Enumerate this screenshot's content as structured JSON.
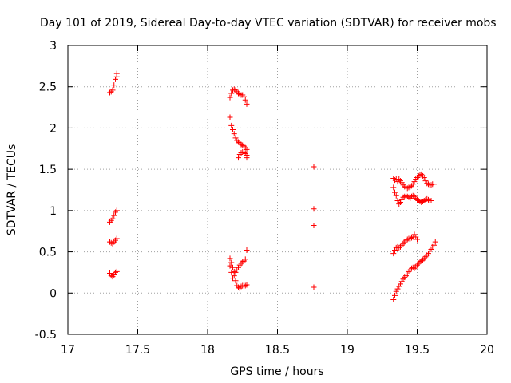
{
  "chart_data": {
    "type": "scatter",
    "title": "Day 101 of 2019, Sidereal Day-to-day VTEC variation (SDTVAR) for receiver mobs",
    "xlabel": "GPS time / hours",
    "ylabel": "SDTVAR / TECUs",
    "xlim": [
      17,
      20
    ],
    "ylim": [
      -0.5,
      3
    ],
    "x_ticks": [
      17,
      17.5,
      18,
      18.5,
      19,
      19.5,
      20
    ],
    "x_tick_labels": [
      "17",
      "17.5",
      "18",
      "18.5",
      "19",
      "19.5",
      "20"
    ],
    "y_ticks": [
      -0.5,
      0,
      0.5,
      1,
      1.5,
      2,
      2.5,
      3
    ],
    "y_tick_labels": [
      "-0.5",
      "0",
      "0.5",
      "1",
      "1.5",
      "2",
      "2.5",
      "3"
    ],
    "grid": true,
    "marker": "+",
    "color": "#ff0000",
    "series": [
      {
        "name": "SDTVAR",
        "points": [
          [
            17.3,
            2.43
          ],
          [
            17.31,
            2.44
          ],
          [
            17.32,
            2.46
          ],
          [
            17.33,
            2.52
          ],
          [
            17.34,
            2.59
          ],
          [
            17.35,
            2.62
          ],
          [
            17.35,
            2.66
          ],
          [
            17.3,
            0.86
          ],
          [
            17.31,
            0.88
          ],
          [
            17.32,
            0.9
          ],
          [
            17.33,
            0.94
          ],
          [
            17.34,
            0.98
          ],
          [
            17.35,
            1.0
          ],
          [
            17.3,
            0.62
          ],
          [
            17.31,
            0.61
          ],
          [
            17.32,
            0.6
          ],
          [
            17.33,
            0.62
          ],
          [
            17.34,
            0.64
          ],
          [
            17.35,
            0.66
          ],
          [
            17.3,
            0.24
          ],
          [
            17.31,
            0.21
          ],
          [
            17.32,
            0.2
          ],
          [
            17.33,
            0.22
          ],
          [
            17.34,
            0.25
          ],
          [
            17.35,
            0.26
          ],
          [
            18.16,
            2.37
          ],
          [
            18.17,
            2.42
          ],
          [
            18.18,
            2.46
          ],
          [
            18.19,
            2.47
          ],
          [
            18.2,
            2.46
          ],
          [
            18.21,
            2.44
          ],
          [
            18.22,
            2.42
          ],
          [
            18.23,
            2.41
          ],
          [
            18.24,
            2.4
          ],
          [
            18.25,
            2.4
          ],
          [
            18.26,
            2.38
          ],
          [
            18.27,
            2.34
          ],
          [
            18.28,
            2.29
          ],
          [
            18.16,
            2.13
          ],
          [
            18.17,
            2.03
          ],
          [
            18.18,
            1.98
          ],
          [
            18.19,
            1.93
          ],
          [
            18.2,
            1.88
          ],
          [
            18.21,
            1.85
          ],
          [
            18.22,
            1.83
          ],
          [
            18.23,
            1.82
          ],
          [
            18.24,
            1.8
          ],
          [
            18.25,
            1.79
          ],
          [
            18.26,
            1.78
          ],
          [
            18.27,
            1.76
          ],
          [
            18.28,
            1.74
          ],
          [
            18.22,
            1.64
          ],
          [
            18.23,
            1.68
          ],
          [
            18.24,
            1.7
          ],
          [
            18.25,
            1.71
          ],
          [
            18.26,
            1.7
          ],
          [
            18.27,
            1.69
          ],
          [
            18.28,
            1.67
          ],
          [
            18.28,
            1.64
          ],
          [
            18.16,
            0.42
          ],
          [
            18.17,
            0.37
          ],
          [
            18.18,
            0.31
          ],
          [
            18.19,
            0.26
          ],
          [
            18.2,
            0.25
          ],
          [
            18.21,
            0.28
          ],
          [
            18.22,
            0.31
          ],
          [
            18.23,
            0.34
          ],
          [
            18.24,
            0.36
          ],
          [
            18.25,
            0.38
          ],
          [
            18.26,
            0.39
          ],
          [
            18.27,
            0.41
          ],
          [
            18.28,
            0.52
          ],
          [
            18.16,
            0.33
          ],
          [
            18.17,
            0.25
          ],
          [
            18.18,
            0.18
          ],
          [
            18.19,
            0.21
          ],
          [
            18.2,
            0.15
          ],
          [
            18.21,
            0.09
          ],
          [
            18.22,
            0.07
          ],
          [
            18.23,
            0.06
          ],
          [
            18.24,
            0.08
          ],
          [
            18.25,
            0.09
          ],
          [
            18.26,
            0.08
          ],
          [
            18.27,
            0.09
          ],
          [
            18.28,
            0.1
          ],
          [
            18.76,
            1.53
          ],
          [
            18.76,
            1.02
          ],
          [
            18.76,
            0.82
          ],
          [
            18.76,
            0.07
          ],
          [
            19.33,
            1.39
          ],
          [
            19.34,
            1.37
          ],
          [
            19.35,
            1.38
          ],
          [
            19.36,
            1.35
          ],
          [
            19.37,
            1.38
          ],
          [
            19.38,
            1.36
          ],
          [
            19.39,
            1.34
          ],
          [
            19.4,
            1.31
          ],
          [
            19.41,
            1.29
          ],
          [
            19.42,
            1.28
          ],
          [
            19.43,
            1.27
          ],
          [
            19.44,
            1.28
          ],
          [
            19.45,
            1.29
          ],
          [
            19.46,
            1.3
          ],
          [
            19.47,
            1.32
          ],
          [
            19.48,
            1.35
          ],
          [
            19.49,
            1.38
          ],
          [
            19.5,
            1.4
          ],
          [
            19.51,
            1.42
          ],
          [
            19.52,
            1.43
          ],
          [
            19.53,
            1.44
          ],
          [
            19.54,
            1.42
          ],
          [
            19.55,
            1.4
          ],
          [
            19.56,
            1.36
          ],
          [
            19.57,
            1.33
          ],
          [
            19.58,
            1.32
          ],
          [
            19.59,
            1.31
          ],
          [
            19.6,
            1.31
          ],
          [
            19.61,
            1.32
          ],
          [
            19.62,
            1.32
          ],
          [
            19.33,
            1.28
          ],
          [
            19.34,
            1.22
          ],
          [
            19.35,
            1.18
          ],
          [
            19.36,
            1.12
          ],
          [
            19.37,
            1.08
          ],
          [
            19.38,
            1.1
          ],
          [
            19.39,
            1.13
          ],
          [
            19.4,
            1.16
          ],
          [
            19.41,
            1.17
          ],
          [
            19.42,
            1.18
          ],
          [
            19.43,
            1.17
          ],
          [
            19.44,
            1.16
          ],
          [
            19.45,
            1.15
          ],
          [
            19.46,
            1.17
          ],
          [
            19.47,
            1.18
          ],
          [
            19.48,
            1.17
          ],
          [
            19.49,
            1.15
          ],
          [
            19.5,
            1.13
          ],
          [
            19.51,
            1.12
          ],
          [
            19.52,
            1.11
          ],
          [
            19.53,
            1.1
          ],
          [
            19.54,
            1.11
          ],
          [
            19.55,
            1.12
          ],
          [
            19.56,
            1.13
          ],
          [
            19.57,
            1.14
          ],
          [
            19.58,
            1.13
          ],
          [
            19.59,
            1.12
          ],
          [
            19.6,
            1.12
          ],
          [
            19.33,
            0.48
          ],
          [
            19.34,
            0.52
          ],
          [
            19.35,
            0.55
          ],
          [
            19.36,
            0.56
          ],
          [
            19.37,
            0.55
          ],
          [
            19.38,
            0.56
          ],
          [
            19.39,
            0.58
          ],
          [
            19.4,
            0.6
          ],
          [
            19.41,
            0.62
          ],
          [
            19.42,
            0.64
          ],
          [
            19.43,
            0.65
          ],
          [
            19.44,
            0.66
          ],
          [
            19.45,
            0.66
          ],
          [
            19.46,
            0.67
          ],
          [
            19.47,
            0.68
          ],
          [
            19.48,
            0.71
          ],
          [
            19.49,
            0.68
          ],
          [
            19.5,
            0.65
          ],
          [
            19.33,
            -0.08
          ],
          [
            19.34,
            -0.03
          ],
          [
            19.35,
            0.02
          ],
          [
            19.36,
            0.05
          ],
          [
            19.37,
            0.08
          ],
          [
            19.38,
            0.11
          ],
          [
            19.39,
            0.14
          ],
          [
            19.4,
            0.17
          ],
          [
            19.41,
            0.19
          ],
          [
            19.42,
            0.21
          ],
          [
            19.43,
            0.23
          ],
          [
            19.44,
            0.26
          ],
          [
            19.45,
            0.28
          ],
          [
            19.46,
            0.3
          ],
          [
            19.47,
            0.31
          ],
          [
            19.48,
            0.3
          ],
          [
            19.49,
            0.32
          ],
          [
            19.5,
            0.34
          ],
          [
            19.51,
            0.36
          ],
          [
            19.52,
            0.38
          ],
          [
            19.53,
            0.39
          ],
          [
            19.54,
            0.4
          ],
          [
            19.55,
            0.42
          ],
          [
            19.56,
            0.44
          ],
          [
            19.57,
            0.46
          ],
          [
            19.58,
            0.48
          ],
          [
            19.59,
            0.51
          ],
          [
            19.6,
            0.53
          ],
          [
            19.61,
            0.56
          ],
          [
            19.62,
            0.58
          ],
          [
            19.63,
            0.62
          ]
        ]
      }
    ]
  }
}
